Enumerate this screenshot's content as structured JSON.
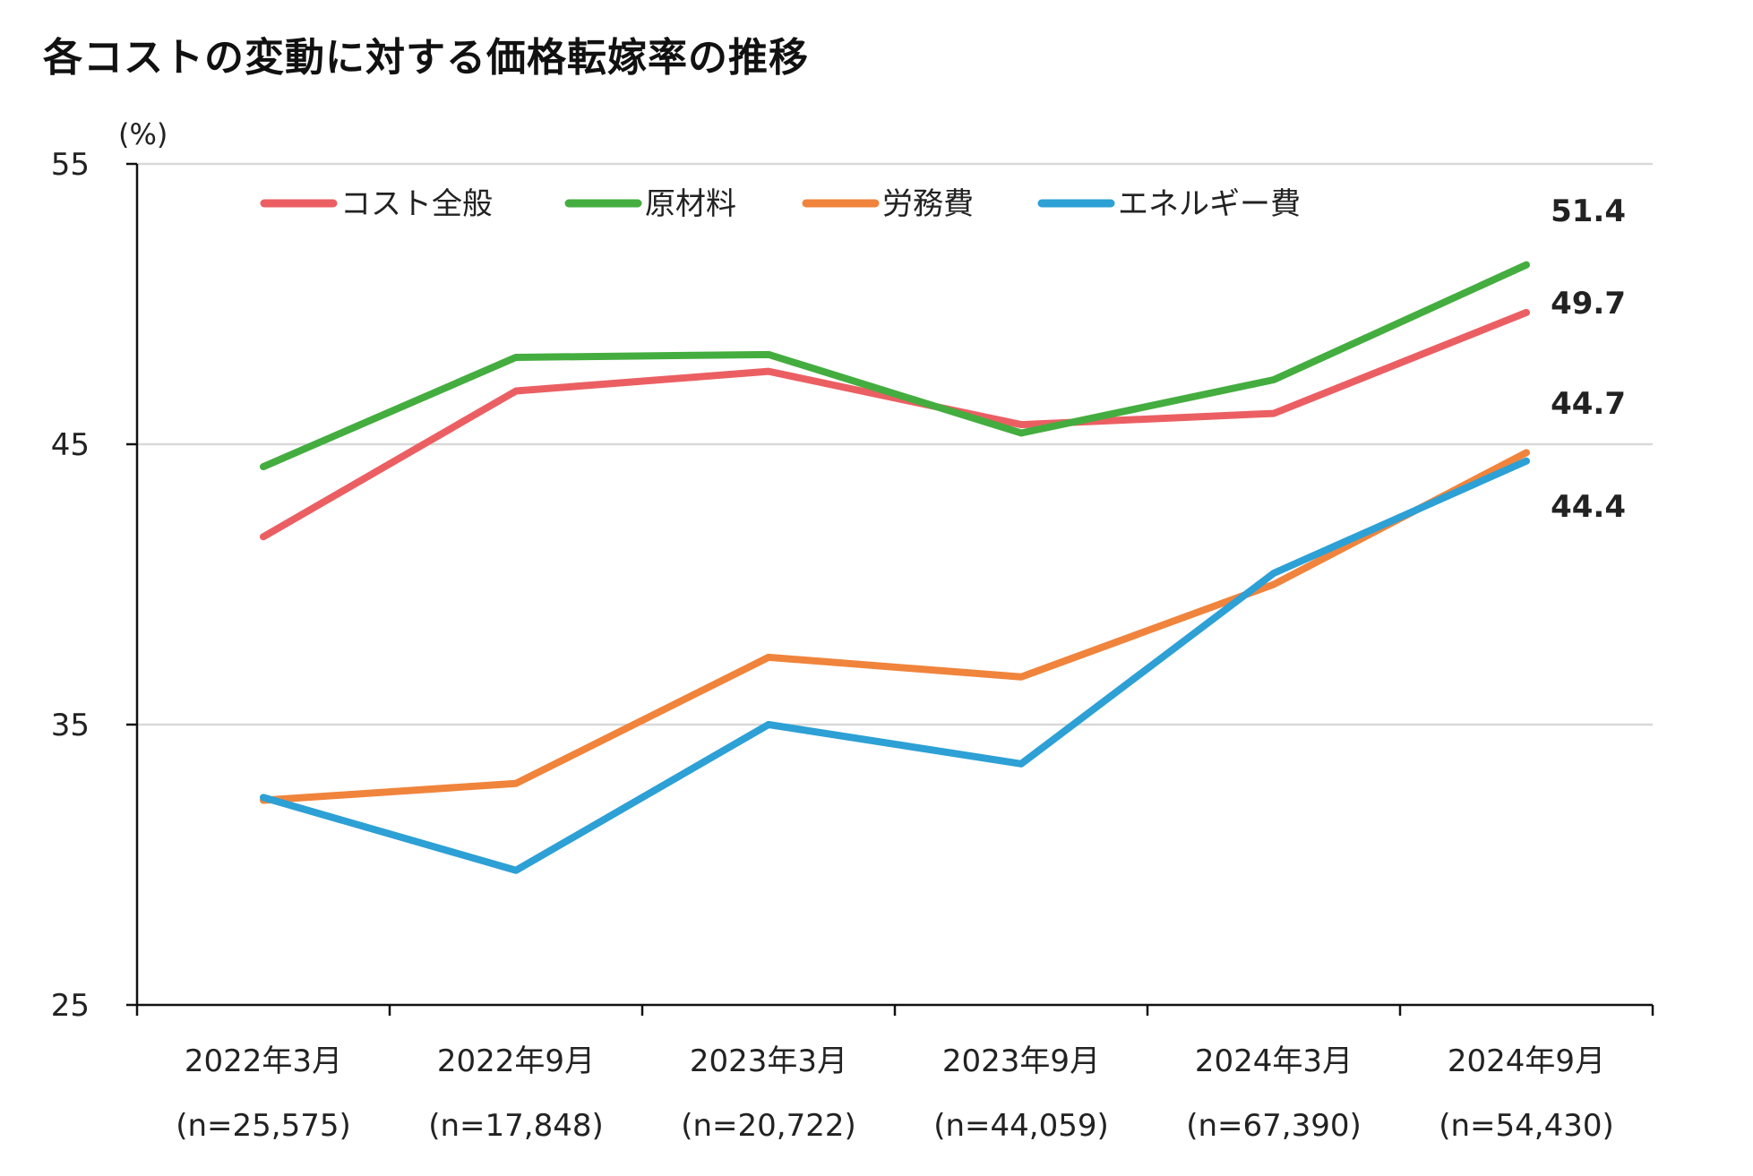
{
  "title": "各コストの変動に対する価格転嫁率の推移",
  "colors": {
    "cost_all": "#EB5F63",
    "materials": "#44AD3F",
    "labor": "#F0843C",
    "energy": "#2DA0D5",
    "grid": "#D9D9D9",
    "axis": "#111111"
  },
  "chart_data": {
    "type": "line",
    "title": "各コストの変動に対する価格転嫁率の推移",
    "ylabel": "(%)",
    "xlabel": "",
    "ylim": [
      25,
      55
    ],
    "yticks": [
      25,
      35,
      45,
      55
    ],
    "grid": true,
    "legend_position": "top",
    "categories": [
      "2022年3月",
      "2022年9月",
      "2023年3月",
      "2023年9月",
      "2024年3月",
      "2024年9月"
    ],
    "sample_sizes": [
      "(n=25,575)",
      "(n=17,848)",
      "(n=20,722)",
      "(n=44,059)",
      "(n=67,390)",
      "(n=54,430)"
    ],
    "series": [
      {
        "name": "コスト全般",
        "color_key": "cost_all",
        "values": [
          41.7,
          46.9,
          47.6,
          45.7,
          46.1,
          49.7
        ]
      },
      {
        "name": "原材料",
        "color_key": "materials",
        "values": [
          44.2,
          48.1,
          48.2,
          45.4,
          47.3,
          51.4
        ]
      },
      {
        "name": "労務費",
        "color_key": "labor",
        "values": [
          32.3,
          32.9,
          37.4,
          36.7,
          40.0,
          44.7
        ]
      },
      {
        "name": "エネルギー費",
        "color_key": "energy",
        "values": [
          32.4,
          29.8,
          35.0,
          33.6,
          40.4,
          44.4
        ]
      }
    ],
    "end_labels": [
      {
        "text": "51.4",
        "series_index": 1
      },
      {
        "text": "49.7",
        "series_index": 0
      },
      {
        "text": "44.7",
        "series_index": 2
      },
      {
        "text": "44.4",
        "series_index": 3
      }
    ]
  }
}
